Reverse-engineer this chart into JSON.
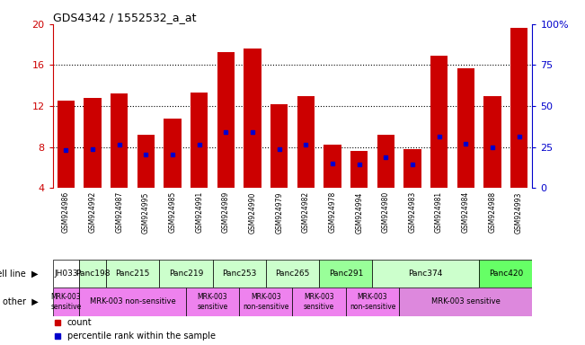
{
  "title": "GDS4342 / 1552532_a_at",
  "samples": [
    "GSM924986",
    "GSM924992",
    "GSM924987",
    "GSM924995",
    "GSM924985",
    "GSM924991",
    "GSM924989",
    "GSM924990",
    "GSM924979",
    "GSM924982",
    "GSM924978",
    "GSM924994",
    "GSM924980",
    "GSM924983",
    "GSM924981",
    "GSM924984",
    "GSM924988",
    "GSM924993"
  ],
  "bar_heights": [
    12.5,
    12.8,
    13.2,
    9.2,
    10.8,
    13.3,
    17.3,
    17.6,
    12.2,
    13.0,
    8.2,
    7.6,
    9.2,
    7.8,
    16.9,
    15.7,
    13.0,
    19.6
  ],
  "blue_dots": [
    7.7,
    7.8,
    8.2,
    7.3,
    7.3,
    8.2,
    9.5,
    9.5,
    7.8,
    8.2,
    6.4,
    6.3,
    7.0,
    6.3,
    9.0,
    8.3,
    8.0,
    9.0
  ],
  "cell_line_sample_map": [
    {
      "label": "JH033",
      "indices": [
        0
      ],
      "color": "#ffffff"
    },
    {
      "label": "Panc198",
      "indices": [
        1
      ],
      "color": "#ccffcc"
    },
    {
      "label": "Panc215",
      "indices": [
        2,
        3
      ],
      "color": "#ccffcc"
    },
    {
      "label": "Panc219",
      "indices": [
        4,
        5
      ],
      "color": "#ccffcc"
    },
    {
      "label": "Panc253",
      "indices": [
        6,
        7
      ],
      "color": "#ccffcc"
    },
    {
      "label": "Panc265",
      "indices": [
        8,
        9
      ],
      "color": "#ccffcc"
    },
    {
      "label": "Panc291",
      "indices": [
        10,
        11
      ],
      "color": "#99ff99"
    },
    {
      "label": "Panc374",
      "indices": [
        12,
        13,
        14,
        15
      ],
      "color": "#ccffcc"
    },
    {
      "label": "Panc420",
      "indices": [
        16,
        17
      ],
      "color": "#66ff66"
    }
  ],
  "other_map": [
    {
      "label": "MRK-003\nsensitive",
      "indices": [
        0
      ],
      "color": "#ee82ee"
    },
    {
      "label": "MRK-003 non-sensitive",
      "indices": [
        1,
        2,
        3,
        4
      ],
      "color": "#ee82ee"
    },
    {
      "label": "MRK-003\nsensitive",
      "indices": [
        5,
        6
      ],
      "color": "#ee82ee"
    },
    {
      "label": "MRK-003\nnon-sensitive",
      "indices": [
        7,
        8
      ],
      "color": "#ee82ee"
    },
    {
      "label": "MRK-003\nsensitive",
      "indices": [
        9,
        10
      ],
      "color": "#ee82ee"
    },
    {
      "label": "MRK-003\nnon-sensitive",
      "indices": [
        11,
        12
      ],
      "color": "#ee82ee"
    },
    {
      "label": "MRK-003 sensitive",
      "indices": [
        13,
        14,
        15,
        16,
        17
      ],
      "color": "#dd88dd"
    }
  ],
  "ylim": [
    4,
    20
  ],
  "yticks_left": [
    4,
    8,
    12,
    16,
    20
  ],
  "yticks_right": [
    0,
    25,
    50,
    75,
    100
  ],
  "bar_color": "#cc0000",
  "dot_color": "#0000cc",
  "background_color": "#ffffff",
  "tick_label_color_left": "#cc0000",
  "tick_label_color_right": "#0000cc",
  "sample_bg_color": "#cccccc"
}
